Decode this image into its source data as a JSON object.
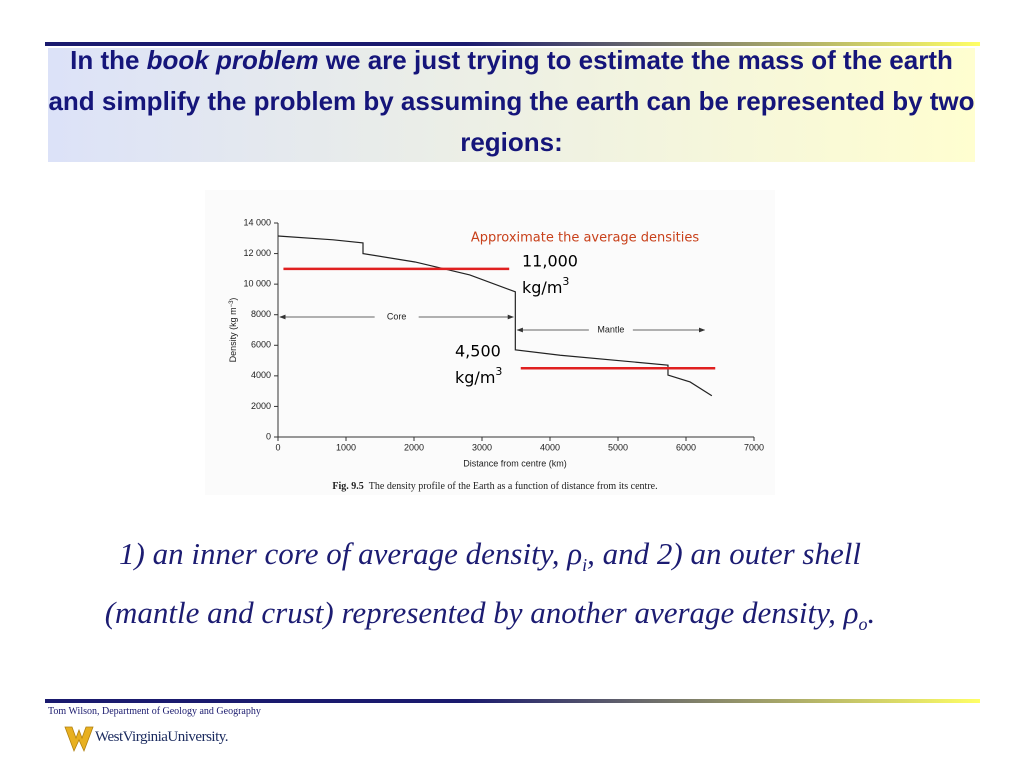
{
  "header": {
    "title_parts": [
      "In the ",
      "book problem",
      " we are just trying to estimate the mass of the earth and simplify the problem by assuming the earth can be represented by two regions:"
    ]
  },
  "chart_data": {
    "type": "line",
    "annotation": "Approximate the average densities",
    "x_label": "Distance from centre (km)",
    "y_label": "Density (kg m",
    "y_label_sup": "−3",
    "y_label_end": ")",
    "x": [
      0,
      810,
      1250,
      1250,
      2015,
      2820,
      3490,
      3490,
      4150,
      5735,
      5735,
      6060,
      6380
    ],
    "series": [
      {
        "color": "#222222",
        "values": [
          13150,
          12900,
          12700,
          12000,
          11450,
          10600,
          9500,
          5700,
          5350,
          4700,
          4050,
          3600,
          2700
        ]
      }
    ],
    "xlim": [
      0,
      7000
    ],
    "ylim": [
      0,
      14000
    ],
    "xticks": [
      0,
      1000,
      2000,
      3000,
      4000,
      5000,
      6000,
      7000
    ],
    "yticks": [
      0,
      2000,
      4000,
      6000,
      8000,
      {
        "value": 10000,
        "label": "10 000"
      },
      {
        "value": 12000,
        "label": "12 000"
      },
      {
        "value": 14000,
        "label": "14 000"
      }
    ],
    "average_lines": [
      {
        "value": 11000,
        "label": "11,000",
        "unit": "kg/m",
        "unit_sup": "3",
        "x": [
          80,
          3400
        ],
        "color": "#e02020"
      },
      {
        "value": 4500,
        "label": "4,500",
        "unit": "kg/m",
        "unit_sup": "3",
        "x": [
          3570,
          6430
        ],
        "color": "#e02020"
      }
    ],
    "regions": [
      {
        "label": "Core",
        "x": [
          0,
          3490
        ]
      },
      {
        "label": "Mantle",
        "x": [
          3490,
          6300
        ]
      }
    ],
    "caption_number": "Fig. 9.5",
    "caption": "The density profile of the Earth as a function of distance from its centre."
  },
  "body": {
    "parts": [
      "1) an inner core of average density, ",
      "ρ",
      "i",
      ", and 2) an outer shell (mantle and crust) represented by another average density, ",
      "ρ",
      "o",
      "."
    ]
  },
  "footer": {
    "credit": "Tom Wilson, Department of Geology and Geography",
    "logo": "WestVirginiaUniversity."
  }
}
